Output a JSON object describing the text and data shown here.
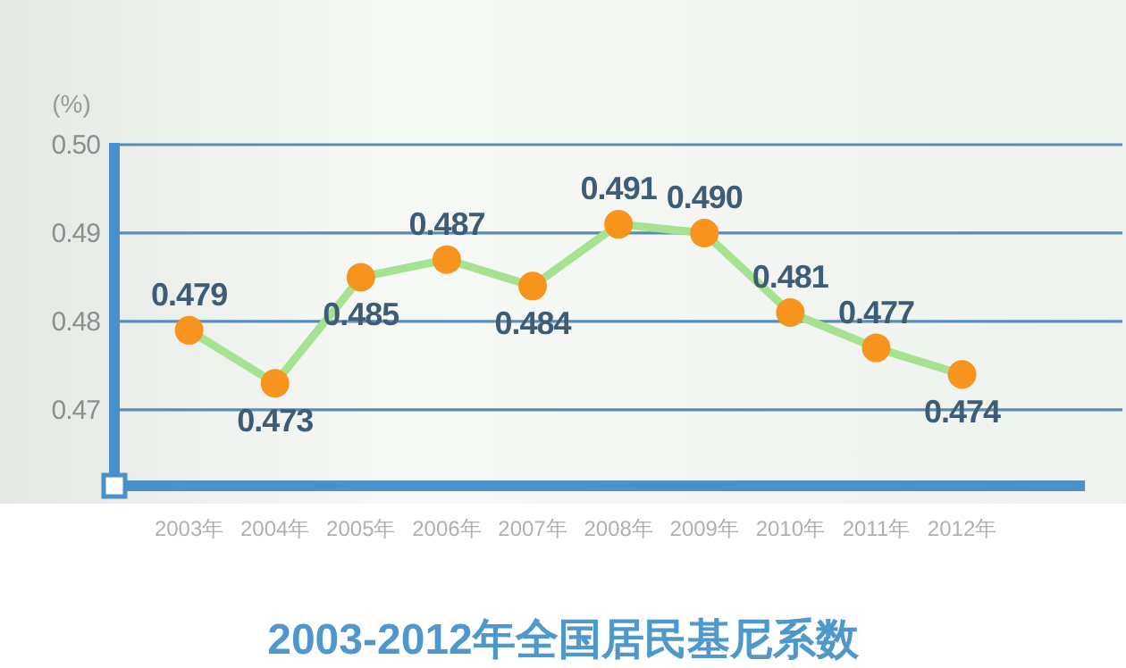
{
  "chart_data": {
    "type": "line",
    "title": "2003-2012年全国居民基尼系数",
    "ylabel": "(%)",
    "categories": [
      "2003年",
      "2004年",
      "2005年",
      "2006年",
      "2007年",
      "2008年",
      "2009年",
      "2010年",
      "2011年",
      "2012年"
    ],
    "values": [
      0.479,
      0.473,
      0.485,
      0.487,
      0.484,
      0.491,
      0.49,
      0.481,
      0.477,
      0.474
    ],
    "value_labels": [
      "0.479",
      "0.473",
      "0.485",
      "0.487",
      "0.484",
      "0.491",
      "0.490",
      "0.481",
      "0.477",
      "0.474"
    ],
    "color": "#a6e391",
    "colors": [
      "#f7941d",
      "#f7941d",
      "#f7941d",
      "#f7941d",
      "#f7941d",
      "#f7941d",
      "#f7941d",
      "#f7941d",
      "#f7941d",
      "#f7941d"
    ],
    "marker": "circle",
    "line_style": "solid",
    "grid": "y",
    "ylim": [
      0.4614,
      0.5
    ],
    "yticks": [
      0.47,
      0.48,
      0.49,
      {
        "value": 0.5,
        "label": "0.50"
      }
    ]
  }
}
